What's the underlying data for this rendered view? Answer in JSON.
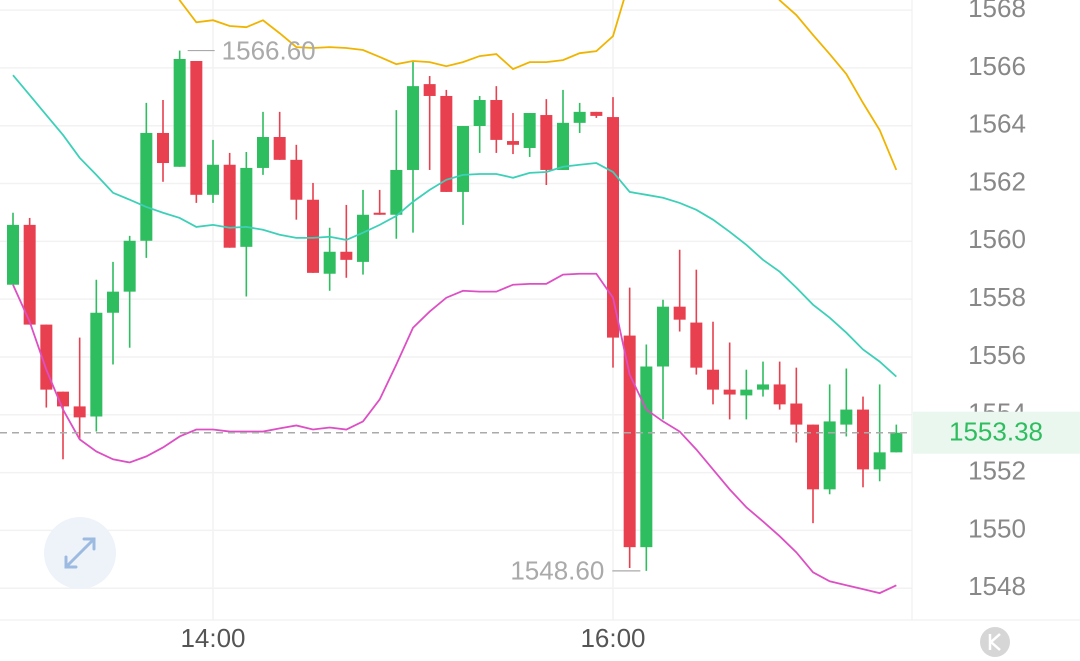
{
  "chart_data": {
    "type": "candlestick",
    "categories": [
      null,
      null,
      null,
      null,
      null,
      null,
      null,
      null,
      null,
      null,
      null,
      null,
      "14:00",
      null,
      null,
      null,
      null,
      null,
      null,
      null,
      null,
      null,
      null,
      null,
      null,
      null,
      null,
      null,
      null,
      null,
      null,
      null,
      null,
      null,
      null,
      null,
      "16:00",
      null,
      null,
      null,
      null,
      null,
      null,
      null,
      null,
      null,
      null,
      null,
      null,
      null,
      null,
      null,
      null,
      null
    ],
    "open": [
      1558.5,
      1560.57,
      1557.12,
      1554.8,
      1554.29,
      1553.94,
      1557.53,
      1558.26,
      1560.02,
      1563.75,
      1562.58,
      1566.24,
      1561.61,
      1562.65,
      1559.81,
      1562.54,
      1563.61,
      1562.82,
      1561.44,
      1558.88,
      1559.64,
      1559.29,
      1560.99,
      1560.92,
      1562.47,
      1565.44,
      1565.03,
      1561.71,
      1563.99,
      1564.89,
      1563.47,
      1563.23,
      1564.37,
      1562.47,
      1564.1,
      1564.48,
      1564.3,
      1556.74,
      1549.42,
      1555.67,
      1557.74,
      1557.19,
      1555.56,
      1554.87,
      1554.67,
      1554.87,
      1555.05,
      1554.39,
      1553.66,
      1551.42,
      1553.66,
      1554.18,
      1552.11,
      1552.7
    ],
    "high": [
      1560.99,
      1560.81,
      1557.12,
      1554.8,
      1556.67,
      1558.67,
      1559.29,
      1560.19,
      1564.79,
      1564.89,
      1566.6,
      1566.24,
      1563.51,
      1563.06,
      1563.09,
      1564.48,
      1564.48,
      1563.34,
      1562.02,
      1560.47,
      1561.26,
      1561.78,
      1561.78,
      1564.54,
      1566.24,
      1565.72,
      1565.24,
      1563.99,
      1565.03,
      1565.37,
      1564.44,
      1564.44,
      1564.92,
      1565.24,
      1564.79,
      1564.48,
      1564.99,
      1558.4,
      1556.43,
      1557.98,
      1559.71,
      1559.02,
      1557.22,
      1556.5,
      1555.56,
      1555.84,
      1555.84,
      1555.63,
      1553.66,
      1555.05,
      1555.6,
      1554.63,
      1555.05,
      1553.66
    ],
    "low": [
      1558.5,
      1557.12,
      1554.25,
      1552.46,
      1553.15,
      1553.42,
      1555.74,
      1556.32,
      1559.43,
      1562.06,
      1562.58,
      1561.33,
      1561.33,
      1559.78,
      1558.09,
      1562.3,
      1562.82,
      1560.75,
      1558.91,
      1558.29,
      1558.74,
      1558.85,
      1560.92,
      1560.09,
      1560.3,
      1562.47,
      1561.71,
      1560.57,
      1563.06,
      1563.06,
      1563.02,
      1562.92,
      1561.95,
      1562.47,
      1563.75,
      1564.27,
      1555.63,
      1548.7,
      1548.6,
      1553.84,
      1556.88,
      1555.39,
      1554.36,
      1553.84,
      1553.84,
      1554.63,
      1554.18,
      1553.04,
      1550.25,
      1551.25,
      1553.25,
      1551.49,
      1551.7,
      1552.7
    ],
    "close": [
      1560.57,
      1557.12,
      1554.87,
      1554.29,
      1553.91,
      1557.53,
      1558.26,
      1560.02,
      1563.75,
      1562.71,
      1566.31,
      1561.61,
      1562.65,
      1559.78,
      1562.54,
      1563.61,
      1562.82,
      1561.44,
      1558.91,
      1559.64,
      1559.36,
      1560.92,
      1560.92,
      1562.47,
      1565.37,
      1565.03,
      1561.71,
      1563.99,
      1564.89,
      1563.51,
      1563.34,
      1564.44,
      1562.47,
      1564.1,
      1564.48,
      1564.34,
      1556.67,
      1549.42,
      1555.67,
      1557.74,
      1557.29,
      1555.63,
      1554.87,
      1554.7,
      1554.87,
      1555.05,
      1554.36,
      1553.66,
      1551.42,
      1553.77,
      1554.18,
      1552.11,
      1552.7,
      1553.38
    ],
    "up_color": "#2ebd5f",
    "down_color": "#e8404f",
    "bands": [
      {
        "color": "#f0b400",
        "values": [
          null,
          null,
          null,
          null,
          null,
          null,
          null,
          null,
          null,
          1569.55,
          1568.34,
          1567.58,
          1567.65,
          1567.45,
          1567.41,
          1567.65,
          1567.2,
          1566.72,
          1566.69,
          1566.72,
          1566.69,
          1566.62,
          1566.38,
          1566.13,
          1566.24,
          1566.2,
          1566.06,
          1566.2,
          1566.41,
          1566.48,
          1565.96,
          1566.2,
          1566.2,
          1566.27,
          1566.51,
          1566.58,
          1567.1,
          1569.03,
          null,
          null,
          null,
          null,
          null,
          null,
          null,
          1569.21,
          1568.34,
          1567.83,
          1567.14,
          1566.48,
          1565.79,
          1564.79,
          1563.85,
          1562.47
        ]
      },
      {
        "color": "#3dd0b8",
        "values": [
          1565.75,
          1565.06,
          1564.37,
          1563.68,
          1562.89,
          1562.3,
          1561.68,
          1561.44,
          1561.19,
          1560.99,
          1560.81,
          1560.5,
          1560.57,
          1560.47,
          1560.5,
          1560.4,
          1560.23,
          1560.12,
          1560.12,
          1560.16,
          1560.05,
          1560.3,
          1560.57,
          1560.88,
          1561.37,
          1561.78,
          1562.13,
          1562.3,
          1562.33,
          1562.33,
          1562.2,
          1562.37,
          1562.4,
          1562.58,
          1562.65,
          1562.71,
          1562.4,
          1561.71,
          1561.61,
          1561.51,
          1561.33,
          1561.09,
          1560.75,
          1560.33,
          1559.88,
          1559.36,
          1558.95,
          1558.4,
          1557.81,
          1557.36,
          1556.84,
          1556.26,
          1555.84,
          1555.32
        ]
      },
      {
        "color": "#dd4fc4",
        "values": [
          1558.5,
          1557.22,
          1555.56,
          1554.18,
          1553.15,
          1552.73,
          1552.46,
          1552.35,
          1552.56,
          1552.87,
          1553.25,
          1553.49,
          1553.49,
          1553.42,
          1553.42,
          1553.42,
          1553.53,
          1553.63,
          1553.49,
          1553.56,
          1553.49,
          1553.77,
          1554.53,
          1555.74,
          1557.01,
          1557.57,
          1558.05,
          1558.29,
          1558.26,
          1558.26,
          1558.5,
          1558.53,
          1558.53,
          1558.85,
          1558.88,
          1558.88,
          1558.05,
          1555.39,
          1554.18,
          1553.77,
          1553.42,
          1552.8,
          1552.11,
          1551.42,
          1550.8,
          1550.31,
          1549.8,
          1549.24,
          1548.55,
          1548.24,
          1548.1,
          1547.97,
          1547.83,
          1548.1
        ]
      }
    ],
    "ylim": [
      1546.9,
      1568.35
    ],
    "yticks": [
      1548,
      1550,
      1552,
      1554,
      1556,
      1558,
      1560,
      1562,
      1564,
      1566,
      1568
    ],
    "grid": true,
    "high_label": {
      "value": 1566.6,
      "label": "1566.60"
    },
    "low_label": {
      "value": 1548.6,
      "label": "1548.60"
    },
    "last_price": 1553.38
  }
}
